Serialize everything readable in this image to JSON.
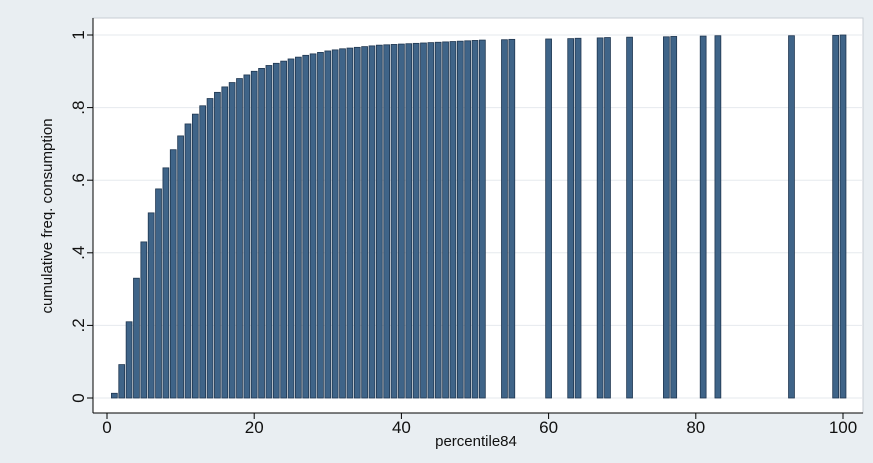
{
  "chart_data": {
    "type": "bar",
    "title": "",
    "xlabel": "percentile84",
    "ylabel": "cumulative freq. consumption",
    "xlim": [
      0,
      100
    ],
    "ylim": [
      0,
      1
    ],
    "xticks": [
      0,
      20,
      40,
      60,
      80,
      100
    ],
    "yticks": [
      0,
      0.2,
      0.4,
      0.6,
      0.8,
      1
    ],
    "ytick_labels": [
      "0",
      ".2",
      ".4",
      ".6",
      ".8",
      "1"
    ],
    "grid": true,
    "legend": "none",
    "colors": {
      "bar": "#3f6488",
      "bar_edge": "#1f3650",
      "plot_bg": "#ffffff",
      "outer_bg": "#e9eef2",
      "grid": "#e6eaee"
    },
    "bar_width": 0.8,
    "x": [
      1,
      2,
      3,
      4,
      5,
      6,
      7,
      8,
      9,
      10,
      11,
      12,
      13,
      14,
      15,
      16,
      17,
      18,
      19,
      20,
      21,
      22,
      23,
      24,
      25,
      26,
      27,
      28,
      29,
      30,
      31,
      32,
      33,
      34,
      35,
      36,
      37,
      38,
      39,
      40,
      41,
      42,
      43,
      44,
      45,
      46,
      47,
      48,
      49,
      50,
      51,
      54,
      55,
      60,
      63,
      64,
      67,
      68,
      71,
      76,
      77,
      81,
      83,
      93,
      99,
      100
    ],
    "values": [
      0.013,
      0.092,
      0.21,
      0.33,
      0.43,
      0.51,
      0.576,
      0.634,
      0.684,
      0.722,
      0.755,
      0.782,
      0.805,
      0.825,
      0.842,
      0.857,
      0.869,
      0.88,
      0.89,
      0.9,
      0.908,
      0.916,
      0.922,
      0.928,
      0.934,
      0.939,
      0.944,
      0.948,
      0.952,
      0.956,
      0.959,
      0.962,
      0.964,
      0.966,
      0.968,
      0.97,
      0.972,
      0.973,
      0.974,
      0.975,
      0.976,
      0.977,
      0.978,
      0.979,
      0.98,
      0.981,
      0.982,
      0.983,
      0.984,
      0.985,
      0.986,
      0.987,
      0.988,
      0.989,
      0.99,
      0.991,
      0.992,
      0.993,
      0.994,
      0.995,
      0.996,
      0.997,
      0.998,
      0.998,
      0.999,
      1.0
    ]
  }
}
